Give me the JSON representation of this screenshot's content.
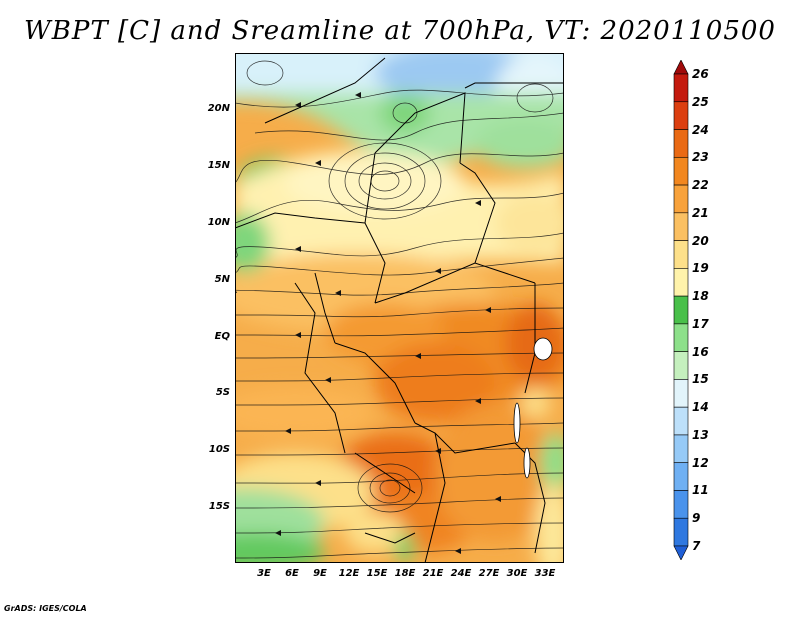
{
  "title": "WBPT [C] and Sreamline at 700hPa, VT: 2020110500",
  "footer": "GrADS: IGES/COLA",
  "map": {
    "lat_labels": [
      "20N",
      "15N",
      "10N",
      "5N",
      "EQ",
      "5S",
      "10S",
      "15S"
    ],
    "lon_labels": [
      "3E",
      "6E",
      "9E",
      "12E",
      "15E",
      "18E",
      "21E",
      "24E",
      "27E",
      "30E",
      "33E"
    ]
  },
  "colorbar": {
    "labels": [
      "7",
      "9",
      "11",
      "12",
      "13",
      "14",
      "15",
      "16",
      "17",
      "18",
      "19",
      "20",
      "21",
      "22",
      "23",
      "24",
      "25",
      "26"
    ],
    "colors": [
      "#1f5fd6",
      "#2f78e0",
      "#4a93ec",
      "#6fb0f3",
      "#96caf7",
      "#bde0fa",
      "#e2f4fb",
      "#c5f0be",
      "#8de08a",
      "#49c04a",
      "#fff3ab",
      "#fde08a",
      "#fbc062",
      "#f8a23b",
      "#f2871f",
      "#ea6a14",
      "#dc3f10",
      "#c41a0e",
      "#a00a0a"
    ]
  }
}
